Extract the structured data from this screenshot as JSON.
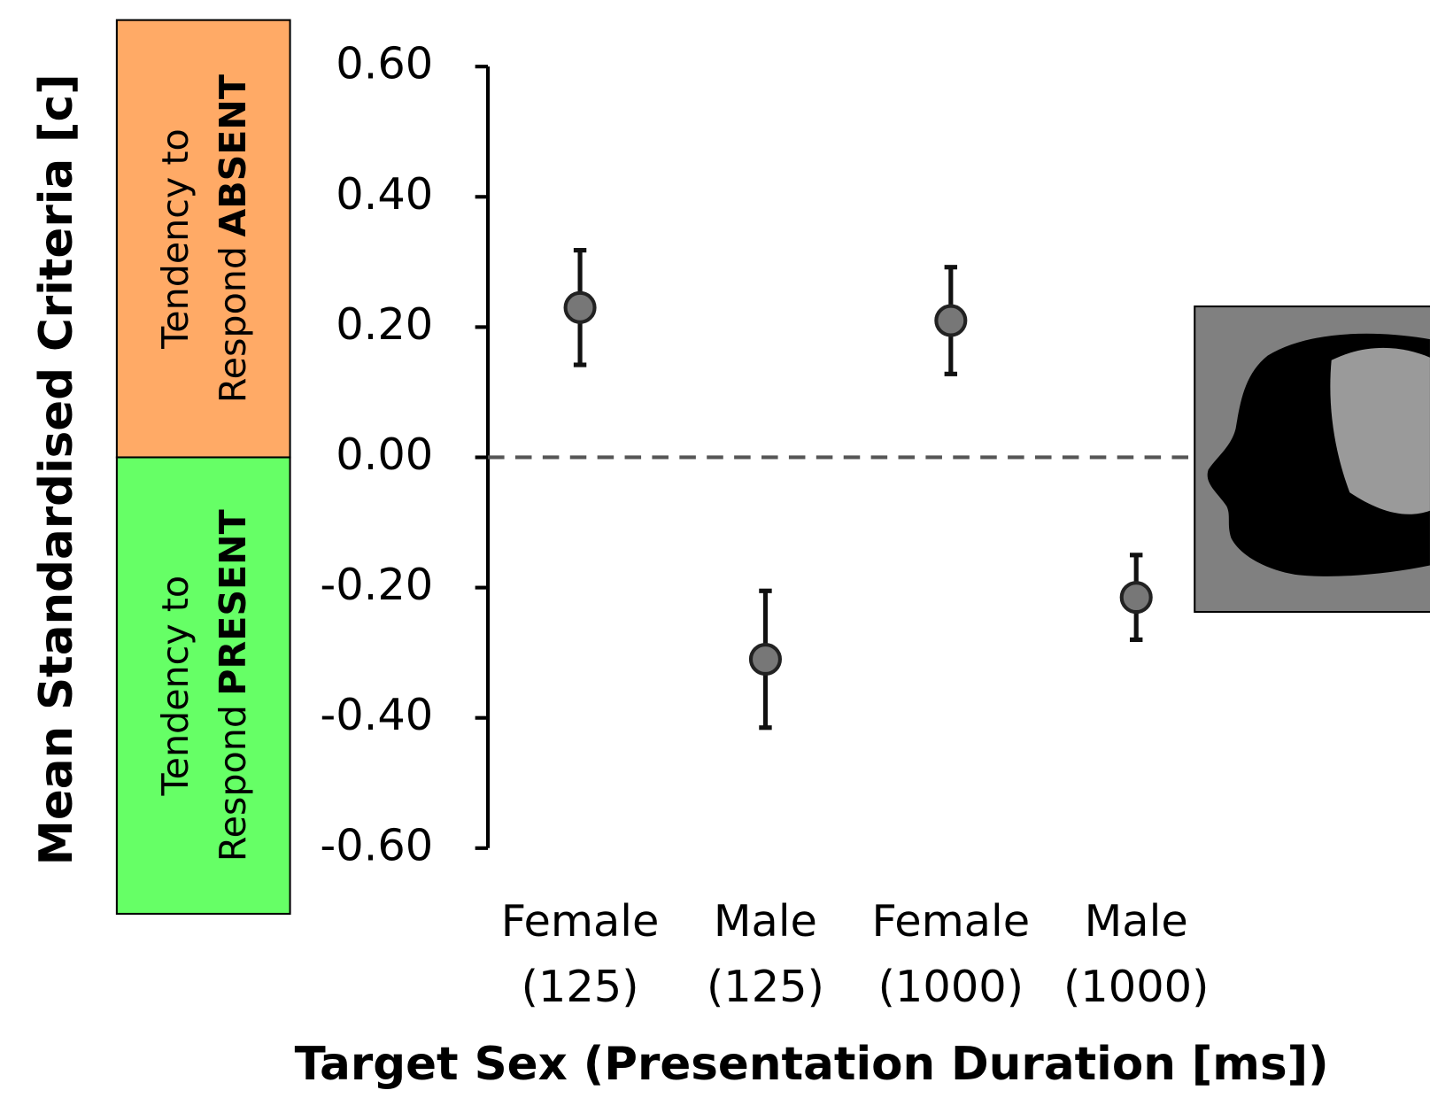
{
  "chart_data": {
    "type": "errorbar",
    "ylabel": "Mean Standardised Criteria [c]",
    "xlabel": "Target Sex (Presentation Duration [ms])",
    "categories": [
      [
        "Female",
        "(125)"
      ],
      [
        "Male",
        "(125)"
      ],
      [
        "Female",
        "(1000)"
      ],
      [
        "Male",
        "(1000)"
      ]
    ],
    "series": [
      {
        "color": "#777777",
        "values": [
          0.23,
          -0.31,
          0.21,
          -0.215
        ],
        "errors": [
          0.088,
          0.105,
          0.082,
          0.065
        ]
      }
    ],
    "ylim": [
      -0.6,
      0.6
    ],
    "yticks": [
      {
        "value": 0.6,
        "label": "0.60"
      },
      {
        "value": 0.4,
        "label": "0.40"
      },
      {
        "value": 0.2,
        "label": "0.20"
      },
      {
        "value": 0,
        "label": "0.00"
      },
      {
        "value": -0.2,
        "label": "-0.20"
      },
      {
        "value": -0.4,
        "label": "-0.40"
      },
      {
        "value": -0.6,
        "label": "-0.60"
      }
    ],
    "reference_line": 0,
    "panels": [
      {
        "color": "#ffaa66",
        "lines": [
          "Tendency to",
          "Respond",
          "ABSENT"
        ]
      },
      {
        "color": "#66ff66",
        "lines": [
          "Tendency to",
          "Respond",
          "PRESENT"
        ]
      }
    ]
  }
}
